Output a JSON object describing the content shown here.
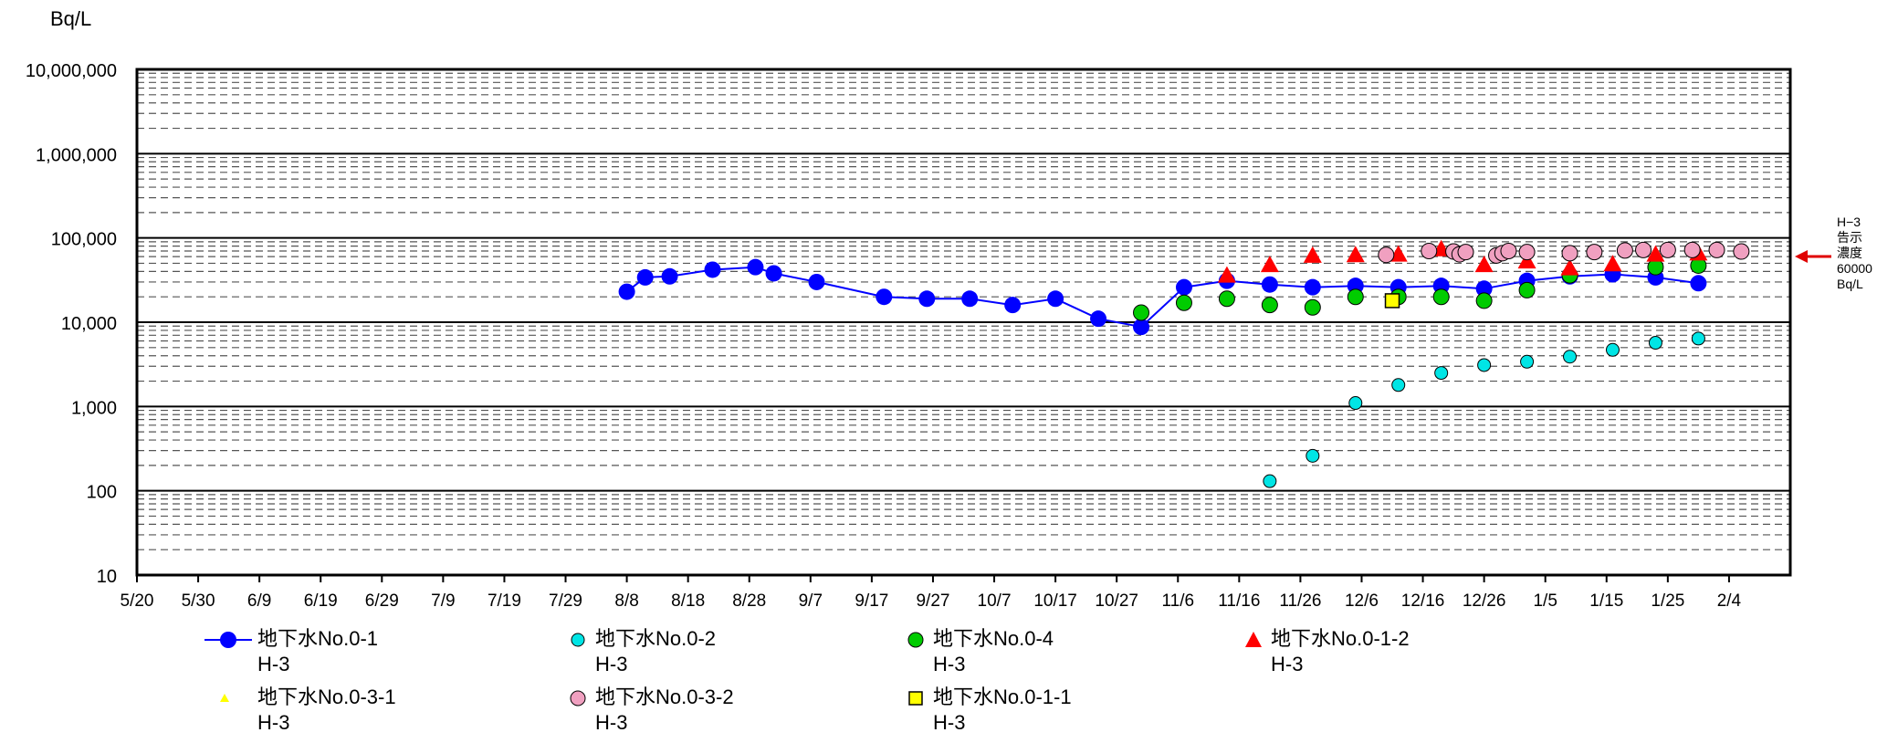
{
  "unit_label": "Bq/L",
  "title_fragment": "",
  "reference": {
    "line1": "H−3",
    "line2": "告示",
    "line3": "濃度",
    "line4": "60000",
    "line5": "Bq/L",
    "color": "#e00000"
  },
  "chart_data": {
    "type": "scatter",
    "title": "",
    "xlabel": "",
    "ylabel": "Bq/L",
    "yscale": "log",
    "ylim": [
      10,
      10000000
    ],
    "y_ticks": [
      10,
      100,
      1000,
      10000,
      100000,
      1000000,
      10000000
    ],
    "y_tick_labels": [
      "10",
      "100",
      "1,000",
      "10,000",
      "100,000",
      "1,000,000",
      "10,000,000"
    ],
    "x_ticks": [
      "5/20",
      "5/30",
      "6/9",
      "6/19",
      "6/29",
      "7/9",
      "7/19",
      "7/29",
      "8/8",
      "8/18",
      "8/28",
      "9/7",
      "9/17",
      "9/27",
      "10/7",
      "10/17",
      "10/27",
      "11/6",
      "11/16",
      "11/26",
      "12/6",
      "12/16",
      "12/26",
      "1/5",
      "1/15",
      "1/25",
      "2/4"
    ],
    "x_unit": "days since 5/20",
    "reference_value": 60000,
    "grid": true,
    "legend_position": "bottom",
    "series": [
      {
        "name": "地下水No.0-1\nH-3",
        "marker": "circle-line",
        "color": "#0000ff",
        "points": [
          {
            "x": "8/8",
            "y": 23000
          },
          {
            "x": "8/11",
            "y": 34000
          },
          {
            "x": "8/15",
            "y": 35000
          },
          {
            "x": "8/22",
            "y": 42000
          },
          {
            "x": "8/29",
            "y": 45000
          },
          {
            "x": "9/1",
            "y": 38000
          },
          {
            "x": "9/8",
            "y": 30000
          },
          {
            "x": "9/19",
            "y": 20000
          },
          {
            "x": "9/26",
            "y": 19000
          },
          {
            "x": "10/3",
            "y": 19000
          },
          {
            "x": "10/10",
            "y": 16000
          },
          {
            "x": "10/17",
            "y": 19000
          },
          {
            "x": "10/24",
            "y": 11000
          },
          {
            "x": "10/31",
            "y": 8800
          },
          {
            "x": "11/7",
            "y": 26000
          },
          {
            "x": "11/14",
            "y": 31000
          },
          {
            "x": "11/21",
            "y": 28000
          },
          {
            "x": "11/28",
            "y": 26000
          },
          {
            "x": "12/5",
            "y": 27000
          },
          {
            "x": "12/12",
            "y": 26000
          },
          {
            "x": "12/19",
            "y": 27000
          },
          {
            "x": "12/26",
            "y": 25000
          },
          {
            "x": "1/2",
            "y": 31000
          },
          {
            "x": "1/9",
            "y": 35000
          },
          {
            "x": "1/16",
            "y": 37000
          },
          {
            "x": "1/23",
            "y": 34000
          },
          {
            "x": "1/30",
            "y": 29000
          }
        ]
      },
      {
        "name": "地下水No.0-2\nH-3",
        "marker": "circle",
        "color": "#00e5e5",
        "points": [
          {
            "x": "11/21",
            "y": 130
          },
          {
            "x": "11/28",
            "y": 260
          },
          {
            "x": "12/5",
            "y": 1100
          },
          {
            "x": "12/12",
            "y": 1800
          },
          {
            "x": "12/19",
            "y": 2500
          },
          {
            "x": "12/26",
            "y": 3100
          },
          {
            "x": "1/2",
            "y": 3400
          },
          {
            "x": "1/9",
            "y": 3900
          },
          {
            "x": "1/16",
            "y": 4700
          },
          {
            "x": "1/23",
            "y": 5700
          },
          {
            "x": "1/30",
            "y": 6400
          }
        ]
      },
      {
        "name": "地下水No.0-4\nH-3",
        "marker": "circle",
        "color": "#00cc00",
        "points": [
          {
            "x": "10/31",
            "y": 13000
          },
          {
            "x": "11/7",
            "y": 17000
          },
          {
            "x": "11/14",
            "y": 19000
          },
          {
            "x": "11/21",
            "y": 16000
          },
          {
            "x": "11/28",
            "y": 15000
          },
          {
            "x": "12/5",
            "y": 20000
          },
          {
            "x": "12/12",
            "y": 20000
          },
          {
            "x": "12/19",
            "y": 20000
          },
          {
            "x": "12/26",
            "y": 18000
          },
          {
            "x": "1/2",
            "y": 24000
          },
          {
            "x": "1/9",
            "y": 36000
          },
          {
            "x": "1/23",
            "y": 45000
          },
          {
            "x": "1/30",
            "y": 47000
          }
        ]
      },
      {
        "name": "地下水No.0-1-2\nH-3",
        "marker": "triangle",
        "color": "#ff0000",
        "points": [
          {
            "x": "11/14",
            "y": 36000
          },
          {
            "x": "11/21",
            "y": 48000
          },
          {
            "x": "11/28",
            "y": 62000
          },
          {
            "x": "12/5",
            "y": 63000
          },
          {
            "x": "12/12",
            "y": 64000
          },
          {
            "x": "12/19",
            "y": 74000
          },
          {
            "x": "12/26",
            "y": 48000
          },
          {
            "x": "1/2",
            "y": 53000
          },
          {
            "x": "1/9",
            "y": 44000
          },
          {
            "x": "1/16",
            "y": 49000
          },
          {
            "x": "1/23",
            "y": 64000
          },
          {
            "x": "1/30",
            "y": 66000
          }
        ]
      },
      {
        "name": "地下水No.0-3-1\nH-3",
        "marker": "triangle-small",
        "color": "#ffff00",
        "points": []
      },
      {
        "name": "地下水No.0-3-2\nH-3",
        "marker": "circle",
        "color": "#f0a0c0",
        "points": [
          {
            "x": "12/10",
            "y": 63000
          },
          {
            "x": "12/17",
            "y": 70000
          },
          {
            "x": "12/21",
            "y": 69000
          },
          {
            "x": "12/22",
            "y": 64000
          },
          {
            "x": "12/23",
            "y": 68000
          },
          {
            "x": "12/28",
            "y": 62000
          },
          {
            "x": "12/29",
            "y": 66000
          },
          {
            "x": "12/30",
            "y": 70000
          },
          {
            "x": "1/2",
            "y": 68000
          },
          {
            "x": "1/9",
            "y": 66000
          },
          {
            "x": "1/13",
            "y": 68000
          },
          {
            "x": "1/18",
            "y": 71000
          },
          {
            "x": "1/21",
            "y": 72000
          },
          {
            "x": "1/25",
            "y": 72000
          },
          {
            "x": "1/29",
            "y": 72000
          },
          {
            "x": "2/2",
            "y": 72000
          },
          {
            "x": "2/6",
            "y": 69000
          }
        ]
      },
      {
        "name": "地下水No.0-1-1\nH-3",
        "marker": "square",
        "color": "#ffff00",
        "points": [
          {
            "x": "12/11",
            "y": 18000
          }
        ]
      }
    ]
  }
}
